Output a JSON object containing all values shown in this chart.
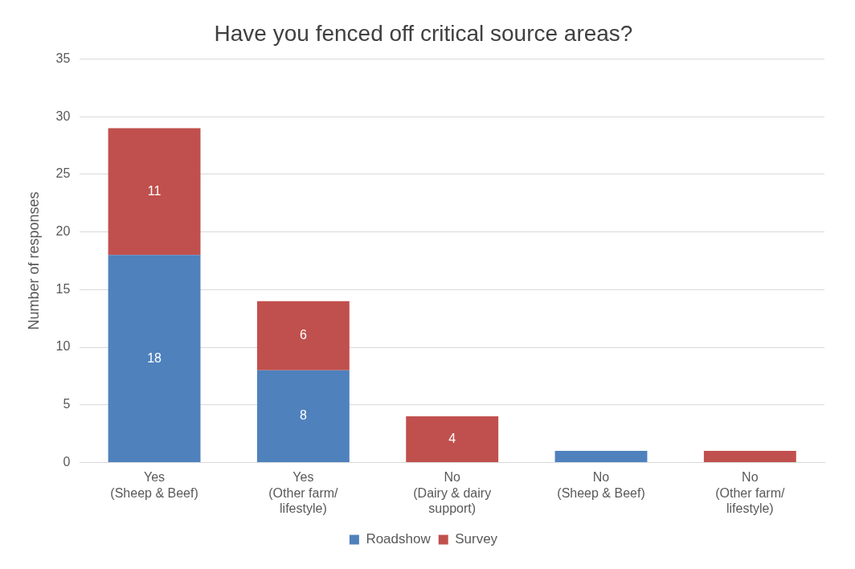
{
  "chart_data": {
    "type": "bar",
    "title": "Have you fenced off critical source areas?",
    "ylabel": "Number of responses",
    "categories": [
      "Yes\n(Sheep & Beef)",
      "Yes\n(Other farm/\nlifestyle)",
      "No\n(Dairy & dairy\nsupport)",
      "No\n(Sheep & Beef)",
      "No\n(Other farm/\nlifestyle)"
    ],
    "stacked": true,
    "series": [
      {
        "name": "Roadshow",
        "color": "#4f81bd",
        "values": [
          18,
          8,
          0,
          1,
          0
        ],
        "value_labels": [
          "18",
          "8",
          null,
          null,
          null
        ]
      },
      {
        "name": "Survey",
        "color": "#c0504d",
        "values": [
          11,
          6,
          4,
          0,
          1
        ],
        "value_labels": [
          "11",
          "6",
          "4",
          null,
          null
        ]
      }
    ],
    "ylim": [
      0,
      35
    ],
    "yticks": [
      0,
      5,
      10,
      15,
      20,
      25,
      30,
      35
    ],
    "grid": "y",
    "legend": "bottom"
  }
}
